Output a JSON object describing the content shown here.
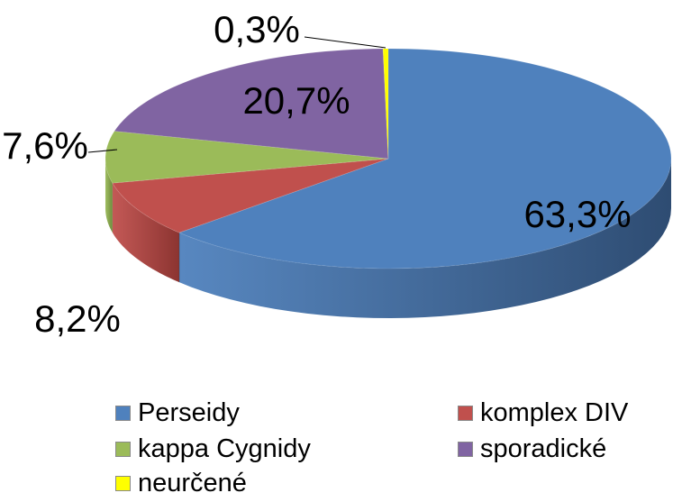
{
  "chart_data": {
    "type": "pie",
    "style": "3d-exploded-none",
    "slices": [
      {
        "name": "Perseidy",
        "value": 63.3,
        "label": "63,3%",
        "color": "#4F81BD",
        "side_color": "#2E4C72"
      },
      {
        "name": "komplex DIV",
        "value": 8.2,
        "label": "8,2%",
        "color": "#C0504D",
        "side_color": "#8C3431"
      },
      {
        "name": "kappa Cygnidy",
        "value": 7.6,
        "label": "7,6%",
        "color": "#9BBB59",
        "side_color": "#6E8A3C"
      },
      {
        "name": "sporadické",
        "value": 20.7,
        "label": "20,7%",
        "color": "#8064A2",
        "side_color": "#5A4577"
      },
      {
        "name": "neurčené",
        "value": 0.3,
        "label": "0,3%",
        "color": "#FFFF00",
        "side_color": "#B3B300"
      }
    ],
    "legend": {
      "position": "bottom",
      "entries": [
        "Perseidy",
        "komplex DIV",
        "kappa Cygnidy",
        "sporadické",
        "neurčené"
      ]
    }
  }
}
